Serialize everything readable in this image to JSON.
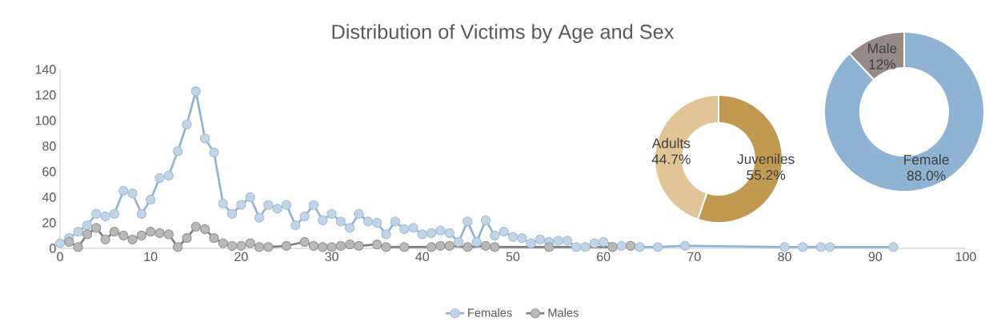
{
  "chart_data": [
    {
      "type": "line",
      "title": "Distribution of Victims by Age and Sex",
      "xlim": [
        0,
        100
      ],
      "ylim": [
        0,
        140
      ],
      "xticks": [
        0,
        10,
        20,
        30,
        40,
        50,
        60,
        70,
        80,
        90,
        100
      ],
      "yticks": [
        0,
        20,
        40,
        60,
        80,
        100,
        120,
        140
      ],
      "marker": "circle",
      "line_style": "solid",
      "legend": "bottom",
      "series": [
        {
          "name": "Females",
          "color": "#8fb3d3",
          "x": [
            0,
            1,
            2,
            3,
            4,
            5,
            6,
            7,
            8,
            9,
            10,
            11,
            12,
            13,
            14,
            15,
            16,
            17,
            18,
            19,
            20,
            21,
            22,
            23,
            24,
            25,
            26,
            27,
            28,
            29,
            30,
            31,
            32,
            33,
            34,
            35,
            36,
            37,
            38,
            39,
            40,
            41,
            42,
            43,
            44,
            45,
            46,
            47,
            48,
            49,
            50,
            51,
            52,
            53,
            54,
            55,
            56,
            57,
            58,
            59,
            60,
            62,
            63,
            64,
            66,
            69,
            80,
            82,
            84,
            85,
            92
          ],
          "values": [
            4,
            8,
            13,
            18,
            27,
            25,
            27,
            45,
            43,
            27,
            38,
            55,
            57,
            76,
            97,
            123,
            86,
            75,
            35,
            27,
            34,
            40,
            24,
            34,
            31,
            34,
            18,
            25,
            34,
            22,
            27,
            21,
            16,
            27,
            21,
            20,
            11,
            21,
            15,
            16,
            11,
            12,
            14,
            12,
            5,
            21,
            5,
            22,
            10,
            13,
            9,
            8,
            4,
            7,
            5,
            6,
            6,
            1,
            1,
            4,
            5,
            2,
            2,
            1,
            1,
            2,
            1,
            1,
            1,
            1,
            1
          ]
        },
        {
          "name": "Males",
          "color": "#7f7f7f",
          "x": [
            1,
            2,
            3,
            4,
            5,
            6,
            7,
            8,
            9,
            10,
            11,
            12,
            13,
            14,
            15,
            16,
            17,
            18,
            19,
            20,
            21,
            22,
            23,
            25,
            27,
            28,
            29,
            30,
            31,
            32,
            33,
            35,
            36,
            38,
            41,
            42,
            43,
            45,
            47,
            48,
            54,
            61,
            63
          ],
          "values": [
            5,
            1,
            11,
            16,
            7,
            13,
            10,
            7,
            10,
            13,
            12,
            11,
            1,
            8,
            17,
            15,
            8,
            4,
            2,
            2,
            4,
            1,
            1,
            2,
            5,
            2,
            1,
            1,
            2,
            3,
            2,
            3,
            1,
            1,
            1,
            2,
            2,
            1,
            2,
            1,
            1,
            1,
            2
          ]
        }
      ]
    },
    {
      "type": "donut",
      "categories": [
        "Juveniles",
        "Adults"
      ],
      "values": [
        55.2,
        44.7
      ],
      "colors": [
        "#c09a50",
        "#e2c596"
      ],
      "value_labels": [
        "55.2%",
        "44.7%"
      ]
    },
    {
      "type": "donut",
      "categories": [
        "Female",
        "Male"
      ],
      "values": [
        88.0,
        12
      ],
      "colors": [
        "#8fb3d3",
        "#958a86"
      ],
      "value_labels": [
        "88.0%",
        "12%"
      ]
    }
  ]
}
